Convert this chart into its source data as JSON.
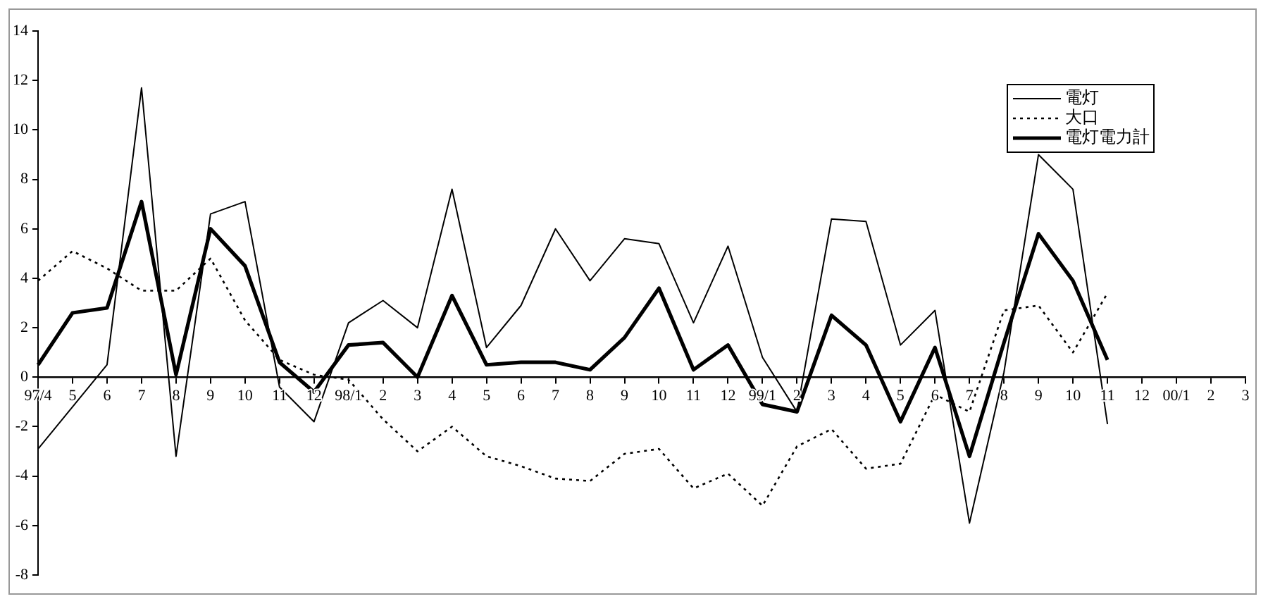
{
  "chart_data": {
    "type": "line",
    "categories": [
      "97/4",
      "5",
      "6",
      "7",
      "8",
      "9",
      "10",
      "11",
      "12",
      "98/1",
      "2",
      "3",
      "4",
      "5",
      "6",
      "7",
      "8",
      "9",
      "10",
      "11",
      "12",
      "99/1",
      "2",
      "3",
      "4",
      "5",
      "6",
      "7",
      "8",
      "9",
      "10",
      "11",
      "12",
      "00/1",
      "2",
      "3"
    ],
    "series": [
      {
        "name": "電灯",
        "color": "#000000",
        "line_style": "solid",
        "values": [
          -2.9,
          -1.2,
          0.5,
          11.7,
          -3.2,
          6.6,
          7.1,
          -0.4,
          -1.8,
          2.2,
          3.1,
          2.0,
          7.6,
          1.2,
          2.9,
          6.0,
          3.9,
          5.6,
          5.4,
          2.2,
          5.3,
          0.8,
          -1.4,
          6.4,
          6.3,
          1.3,
          2.7,
          -5.9,
          0.2,
          9.0,
          7.6,
          -1.9,
          null,
          null,
          null,
          null
        ]
      },
      {
        "name": "大口",
        "color": "#000000",
        "line_style": "dotted",
        "values": [
          3.9,
          5.1,
          4.4,
          3.5,
          3.5,
          4.8,
          2.3,
          0.7,
          0.1,
          -0.1,
          -1.7,
          -3.0,
          -2.0,
          -3.2,
          -3.6,
          -4.1,
          -4.2,
          -3.1,
          -2.9,
          -4.5,
          -3.9,
          -5.2,
          -2.8,
          -2.1,
          -3.7,
          -3.5,
          -0.7,
          -1.4,
          2.7,
          2.9,
          1.0,
          3.4,
          null,
          null,
          null,
          null
        ]
      },
      {
        "name": "電灯電力計",
        "color": "#000000",
        "line_style": "solid",
        "values": [
          0.5,
          2.6,
          2.8,
          7.1,
          0.1,
          6.0,
          4.5,
          0.6,
          -0.6,
          1.3,
          1.4,
          0.0,
          3.3,
          0.5,
          0.6,
          0.6,
          0.3,
          1.6,
          3.6,
          0.3,
          1.3,
          -1.1,
          -1.4,
          2.5,
          1.3,
          -1.8,
          1.2,
          -3.2,
          1.4,
          5.8,
          3.9,
          0.7,
          null,
          null,
          null,
          null
        ]
      }
    ],
    "ylim": [
      -8,
      14
    ],
    "yticks": [
      -8,
      -6,
      -4,
      -2,
      0,
      2,
      4,
      6,
      8,
      10,
      12,
      14
    ],
    "grid": false,
    "legend": "top right",
    "marker": "none"
  }
}
